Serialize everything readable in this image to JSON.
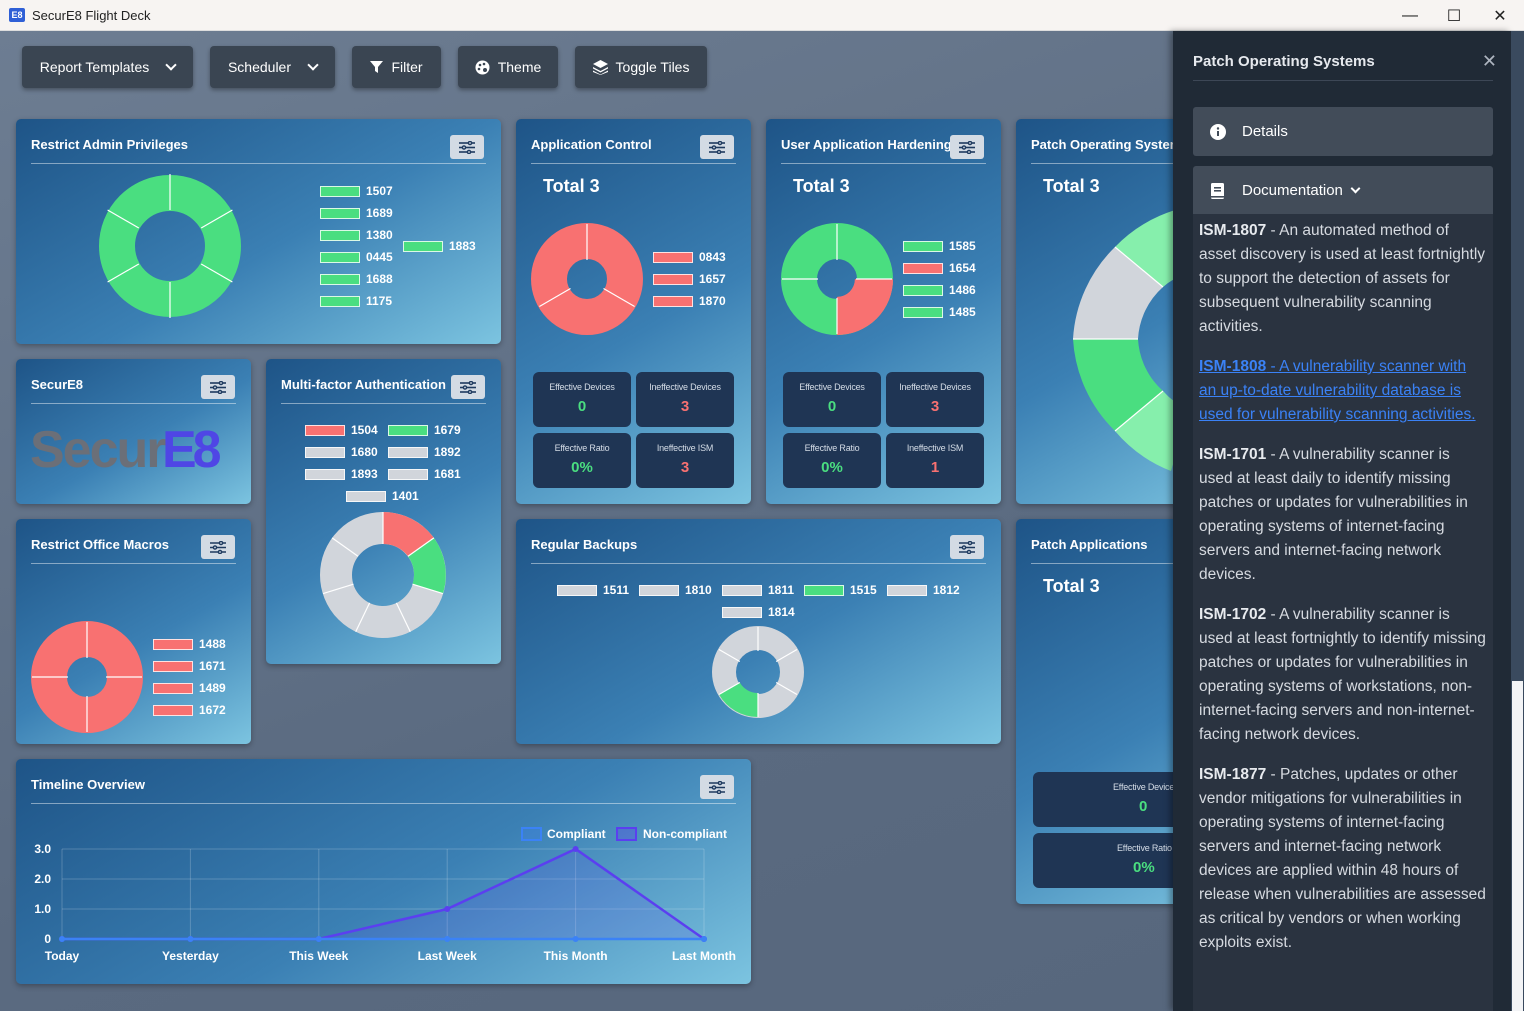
{
  "window": {
    "title": "SecurE8 Flight Deck",
    "app_icon": "E8",
    "minimize": "—",
    "maximize": "☐",
    "close": "✕"
  },
  "toolbar": {
    "report_templates": "Report Templates",
    "scheduler": "Scheduler",
    "filter": "Filter",
    "theme": "Theme",
    "toggle_tiles": "Toggle Tiles"
  },
  "tiles": {
    "admin": {
      "title": "Restrict Admin Privileges",
      "legend_col1": [
        "1507",
        "1689",
        "1380",
        "0445",
        "1688",
        "1175"
      ],
      "legend_col2": [
        "1883"
      ]
    },
    "appctrl": {
      "title": "Application Control",
      "total": "Total 3",
      "legend": [
        "0843",
        "1657",
        "1870"
      ],
      "stats": {
        "eff_dev_label": "Effective Devices",
        "eff_dev": "0",
        "ineff_dev_label": "Ineffective Devices",
        "ineff_dev": "3",
        "ratio_label": "Effective Ratio",
        "ratio": "0%",
        "ineff_ism_label": "Ineffective ISM",
        "ineff_ism": "3"
      }
    },
    "uah": {
      "title": "User Application Hardening",
      "total": "Total 3",
      "legend": [
        "1585",
        "1654",
        "1486",
        "1485"
      ],
      "stats": {
        "eff_dev_label": "Effective Devices",
        "eff_dev": "0",
        "ineff_dev_label": "Ineffective Devices",
        "ineff_dev": "3",
        "ratio_label": "Effective Ratio",
        "ratio": "0%",
        "ineff_ism_label": "Ineffective ISM",
        "ineff_ism": "1"
      }
    },
    "patchos": {
      "title": "Patch Operating Systems",
      "total": "Total 3"
    },
    "secure8": {
      "title": "SecurE8",
      "logo_text": "SecurE8"
    },
    "mfa": {
      "title": "Multi-factor Authentication",
      "legend": [
        "1504",
        "1679",
        "1680",
        "1892",
        "1893",
        "1681",
        "1401"
      ]
    },
    "macros": {
      "title": "Restrict Office Macros",
      "legend": [
        "1488",
        "1671",
        "1489",
        "1672"
      ]
    },
    "backups": {
      "title": "Regular Backups",
      "legend": [
        "1511",
        "1810",
        "1811",
        "1515",
        "1812",
        "1814"
      ]
    },
    "patchapps": {
      "title": "Patch Applications",
      "total": "Total 3",
      "eff_dev_label": "Effective Device",
      "eff_dev": "0",
      "ratio_label": "Effective Ratio",
      "ratio": "0%"
    },
    "timeline": {
      "title": "Timeline Overview"
    }
  },
  "chart_data": {
    "type": "line",
    "title": "Timeline Overview",
    "categories": [
      "Today",
      "Yesterday",
      "This Week",
      "Last Week",
      "This Month",
      "Last Month"
    ],
    "series": [
      {
        "name": "Compliant",
        "values": [
          0,
          0,
          0,
          0,
          0,
          0
        ],
        "color": "#3b82f6"
      },
      {
        "name": "Non-compliant",
        "values": [
          0,
          0,
          0,
          1,
          3,
          0
        ],
        "color": "#5b3ff0"
      }
    ],
    "yticks": [
      "0",
      "1.0",
      "2.0",
      "3.0"
    ],
    "ylim": [
      0,
      3
    ],
    "grid": true,
    "legend_position": "top-right"
  },
  "panel": {
    "title": "Patch Operating Systems",
    "close": "✕",
    "details": "Details",
    "documentation": "Documentation",
    "docs": [
      {
        "id": "ISM-1807",
        "text": " - An automated method of asset discovery is used at least fortnightly to support the detection of assets for subsequent vulnerability scanning activities."
      },
      {
        "id": "ISM-1808",
        "text": " - A vulnerability scanner with an up-to-date vulnerability database is used for vulnerability scanning activities."
      },
      {
        "id": "ISM-1701",
        "text": " - A vulnerability scanner is used at least daily to identify missing patches or updates for vulnerabilities in operating systems of internet-facing servers and internet-facing network devices."
      },
      {
        "id": "ISM-1702",
        "text": " - A vulnerability scanner is used at least fortnightly to identify missing patches or updates for vulnerabilities in operating systems of workstations, non-internet-facing servers and non-internet-facing network devices."
      },
      {
        "id": "ISM-1877",
        "text": " - Patches, updates or other vendor mitigations for vulnerabilities in operating systems of internet-facing servers and internet-facing network devices are applied within 48 hours of release when vulnerabilities are assessed as critical by vendors or when working exploits exist."
      }
    ]
  },
  "colors": {
    "green": "#4ade80",
    "red": "#f87171",
    "grey": "#d1d5db",
    "stat_bg": "#1f3554",
    "panel_bg": "#202a36"
  }
}
